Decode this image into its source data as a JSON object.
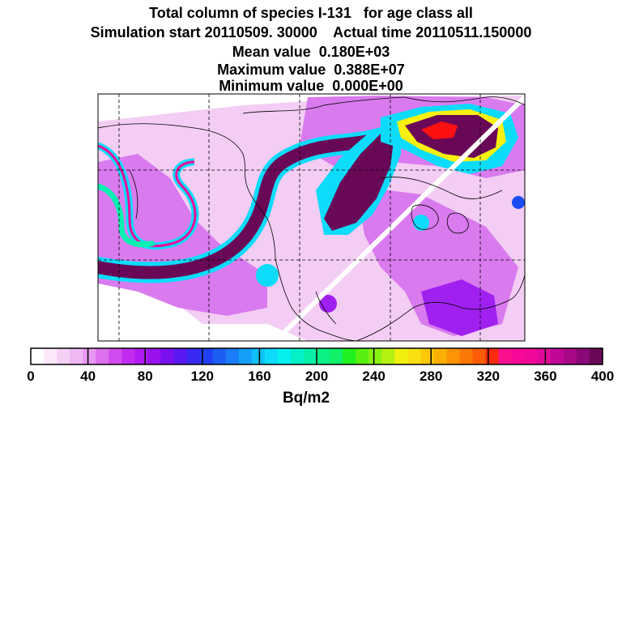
{
  "header": {
    "line1": "Total column of species I-131   for age class all",
    "line2": "Simulation start 20110509. 30000    Actual time 20110511.150000",
    "line3": "Mean value  0.180E+03",
    "line4": "Maximum value  0.388E+07",
    "line5": "Minimum value  0.000E+00"
  },
  "colorbar": {
    "unit": "Bq/m2",
    "ticks": [
      "0",
      "40",
      "80",
      "120",
      "160",
      "200",
      "240",
      "280",
      "320",
      "360",
      "400"
    ],
    "colors": [
      "#ffffff",
      "#fbe8fb",
      "#f5d0f5",
      "#efb8f3",
      "#e79af1",
      "#dd70ee",
      "#d04cee",
      "#c22cf0",
      "#b01af0",
      "#9a10ee",
      "#7a10ee",
      "#5a18f0",
      "#3a28f2",
      "#2240f2",
      "#1c5ef4",
      "#1a7cf6",
      "#14a0f8",
      "#10c0fa",
      "#0cdcfa",
      "#06f0f0",
      "#06f0c8",
      "#08f0a8",
      "#0cf088",
      "#10f068",
      "#20f020",
      "#58f010",
      "#88f010",
      "#b4f010",
      "#f0f010",
      "#f8e010",
      "#fcc808",
      "#fcb006",
      "#fc9406",
      "#fc7806",
      "#fc5c08",
      "#fc2c10",
      "#fc1090",
      "#f80898",
      "#f00898",
      "#e00898",
      "#c00898",
      "#a80888",
      "#8a0878",
      "#6a0858"
    ]
  },
  "map": {
    "colors": {
      "background": "#ffffff",
      "light": "#f3cdf3",
      "medium": "#d97aee",
      "violet": "#a020f0",
      "blue": "#1a4cf4",
      "cyan": "#0cdcfa",
      "teal": "#06f0b0",
      "green": "#40f010",
      "yellow": "#f8f010",
      "orange": "#fc8806",
      "red": "#fc1010",
      "magenta": "#f00898",
      "dark": "#6a0858"
    }
  }
}
